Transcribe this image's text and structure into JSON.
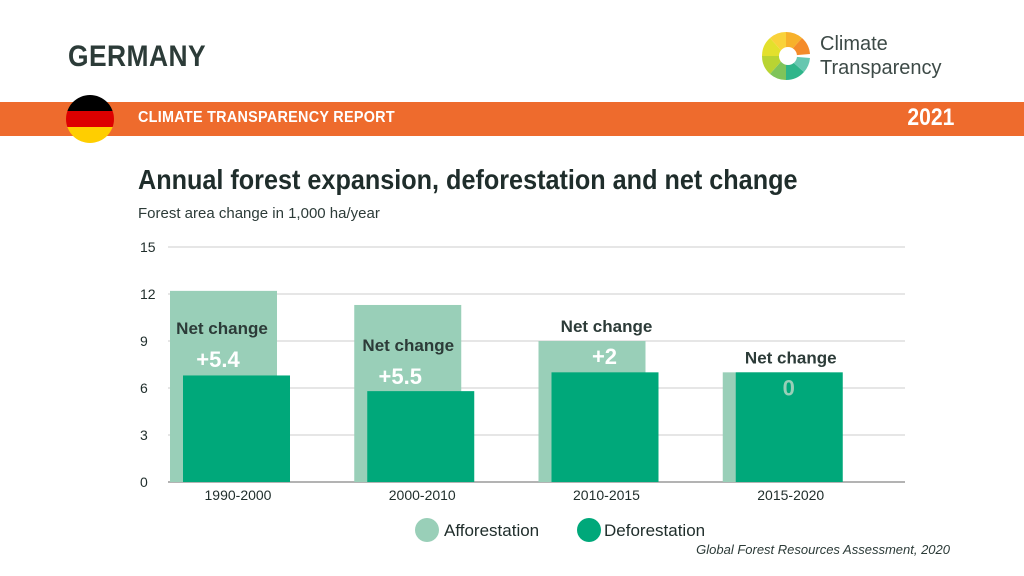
{
  "header": {
    "country": "GERMANY",
    "report_label": "CLIMATE TRANSPARENCY REPORT",
    "year": "2021",
    "logo_line1": "Climate",
    "logo_line2": "Transparency"
  },
  "colors": {
    "orange": "#ee6b2d",
    "afforestation": "#99cfb8",
    "deforestation": "#00a87a",
    "net_value_text": "#ffffff",
    "net_zero_text": "#99cfb8",
    "grid": "#cccccc"
  },
  "source": "Global Forest Resources Assessment, 2020",
  "chart_data": {
    "type": "bar",
    "title": "Annual forest expansion, deforestation and net change",
    "subtitle": "Forest area change in 1,000 ha/year",
    "categories": [
      "1990-2000",
      "2000-2010",
      "2010-2015",
      "2015-2020"
    ],
    "series": [
      {
        "name": "Afforestation",
        "values": [
          12.2,
          11.3,
          9.0,
          7.0
        ]
      },
      {
        "name": "Deforestation",
        "values": [
          6.8,
          5.8,
          7.0,
          7.0
        ]
      }
    ],
    "net_change_label": "Net change",
    "net_change_values": [
      "+5.4",
      "+5.5",
      "+2",
      "0"
    ],
    "ylim": [
      0,
      15
    ],
    "yticks": [
      "0",
      "3",
      "6",
      "9",
      "12",
      "15"
    ],
    "grid": true,
    "legend": "bottom"
  }
}
